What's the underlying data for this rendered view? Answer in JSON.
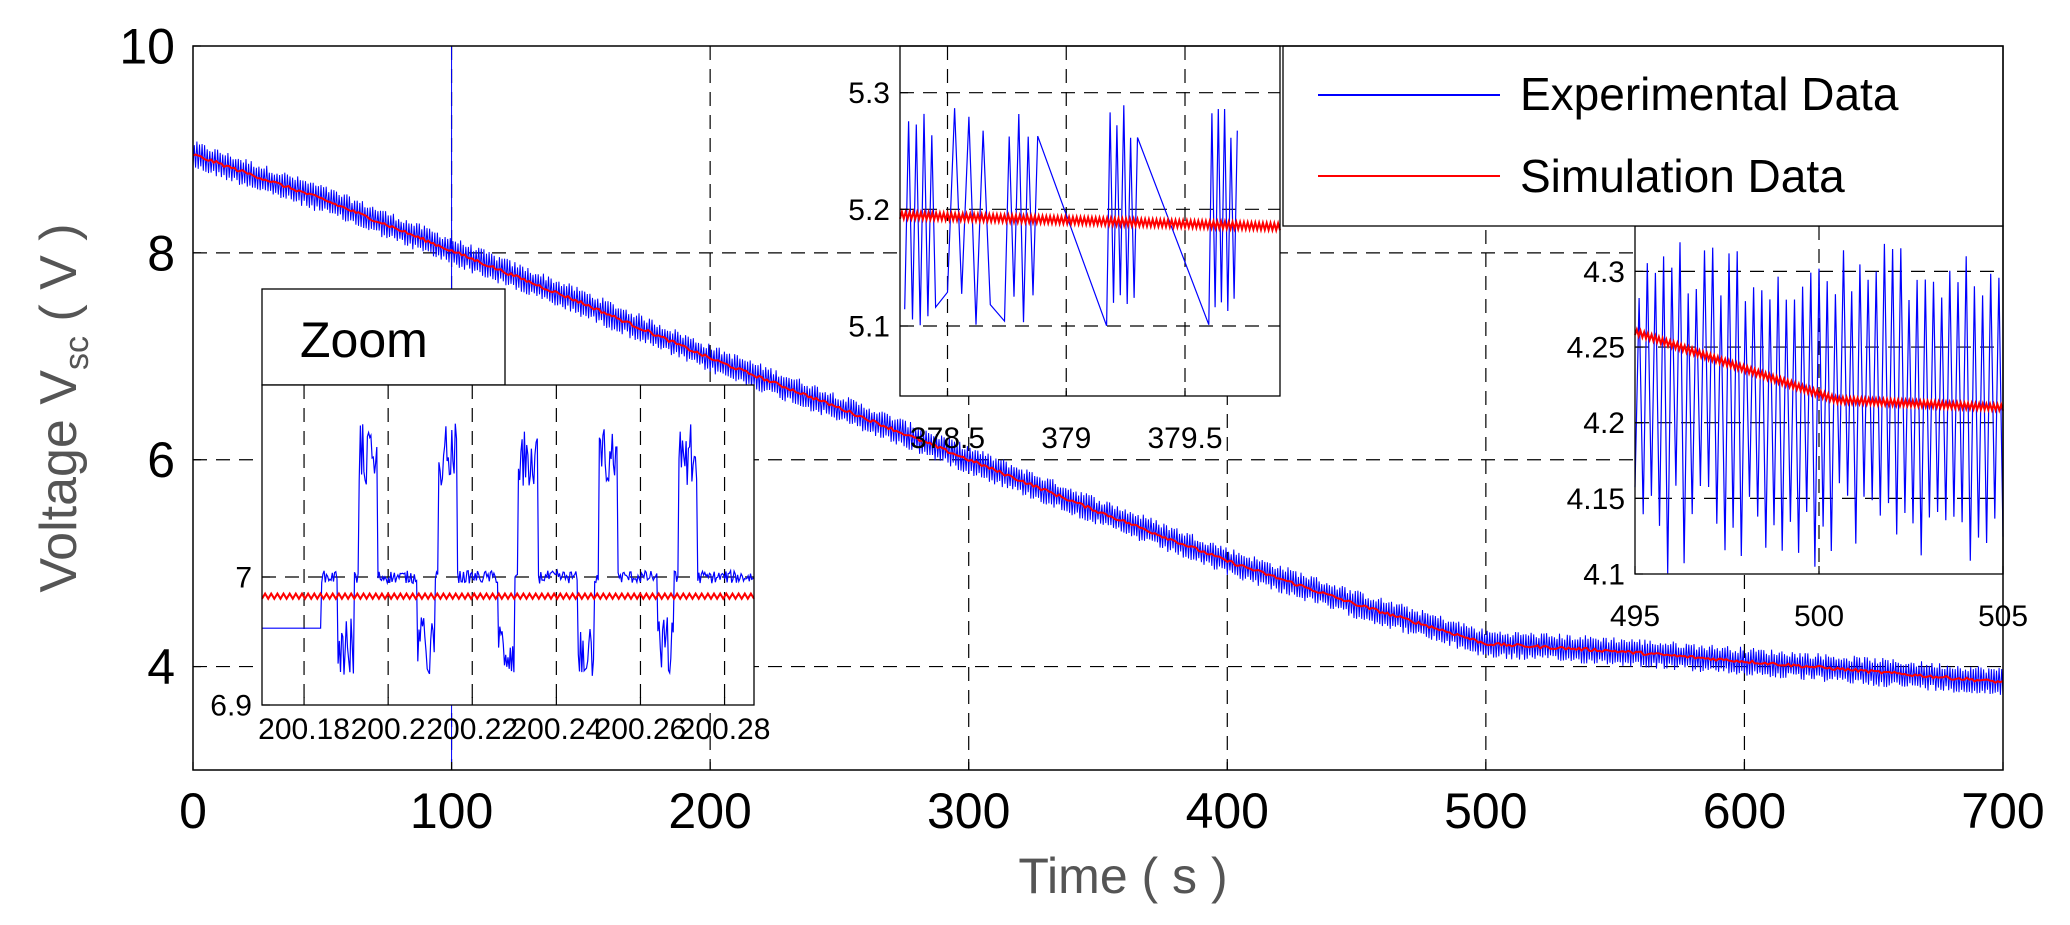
{
  "chart_data": {
    "type": "line",
    "main": {
      "xlabel": "Time ( s )",
      "ylabel_prefix": "Voltage V",
      "ylabel_sub": "sc",
      "ylabel_suffix": " ( V )",
      "xlim": [
        0,
        700
      ],
      "ylim": [
        3,
        10
      ],
      "xticks": [
        0,
        100,
        200,
        300,
        400,
        500,
        600,
        700
      ],
      "xtick_labels": [
        "0",
        "100",
        "200",
        "300",
        "400",
        "500",
        "600",
        "700"
      ],
      "yticks": [
        4,
        6,
        8,
        10
      ],
      "ytick_labels": [
        "4",
        "6",
        "8",
        "10"
      ],
      "grid": true,
      "legend_position": "top-right",
      "series": [
        {
          "name": "Experimental Data",
          "color": "#0000ff",
          "x": [
            0,
            50,
            100,
            150,
            200,
            250,
            300,
            350,
            400,
            450,
            490,
            500,
            550,
            600,
            650,
            700
          ],
          "y": [
            8.95,
            8.52,
            8.02,
            7.52,
            6.98,
            6.5,
            6.0,
            5.5,
            5.02,
            4.6,
            4.3,
            4.22,
            4.15,
            4.05,
            3.95,
            3.85
          ],
          "ripple_amplitude": 0.14
        },
        {
          "name": "Simulation Data",
          "color": "#ff0000",
          "x": [
            0,
            50,
            100,
            150,
            200,
            250,
            300,
            350,
            400,
            450,
            490,
            500,
            550,
            600,
            650,
            700
          ],
          "y": [
            8.95,
            8.52,
            8.02,
            7.52,
            6.98,
            6.5,
            6.0,
            5.5,
            5.02,
            4.6,
            4.3,
            4.22,
            4.15,
            4.05,
            3.95,
            3.85
          ]
        }
      ]
    },
    "insets": [
      {
        "name": "zoom-inset",
        "title": "Zoom",
        "xlim": [
          200.17,
          200.287
        ],
        "ylim": [
          6.9,
          7.15
        ],
        "xticks": [
          200.18,
          200.2,
          200.22,
          200.24,
          200.26,
          200.28
        ],
        "xtick_labels": [
          "200.18",
          "200.2",
          "200.22",
          "200.24",
          "200.26",
          "200.28"
        ],
        "yticks": [
          6.9,
          7.0
        ],
        "ytick_labels": [
          "6.9",
          "7"
        ],
        "simulation_level": 6.985,
        "experimental_base": 7.0,
        "pulse_centers": [
          200.196,
          200.215,
          200.234,
          200.253,
          200.272
        ],
        "pulse_peak": 7.12,
        "pulse_trough": 6.92
      },
      {
        "name": "inset-378",
        "xlim": [
          378.3,
          379.9
        ],
        "ylim": [
          5.04,
          5.34
        ],
        "xticks": [
          378.5,
          379,
          379.5
        ],
        "xtick_labels": [
          "378.5",
          "379",
          "379.5"
        ],
        "yticks": [
          5.1,
          5.2,
          5.3
        ],
        "ytick_labels": [
          "5.1",
          "5.2",
          "5.3"
        ],
        "simulation_start": 5.195,
        "simulation_end": 5.185,
        "spike_top": 5.29,
        "spike_bottom": 5.1,
        "spike_groups": [
          [
            378.32,
            378.45
          ],
          [
            378.5,
            378.68
          ],
          [
            378.74,
            378.88
          ],
          [
            379.17,
            379.3
          ],
          [
            379.6,
            379.72
          ]
        ]
      },
      {
        "name": "inset-500",
        "xlim": [
          495,
          505
        ],
        "ylim": [
          4.1,
          4.33
        ],
        "xticks": [
          495,
          500,
          505
        ],
        "xtick_labels": [
          "495",
          "500",
          "505"
        ],
        "yticks": [
          4.1,
          4.15,
          4.2,
          4.25,
          4.3
        ],
        "ytick_labels": [
          "4.1",
          "4.15",
          "4.2",
          "4.25",
          "4.3"
        ],
        "simulation_start": 4.26,
        "simulation_knee": 4.215,
        "simulation_end": 4.21,
        "spike_top": 4.32,
        "spike_bottom": 4.1
      }
    ]
  }
}
